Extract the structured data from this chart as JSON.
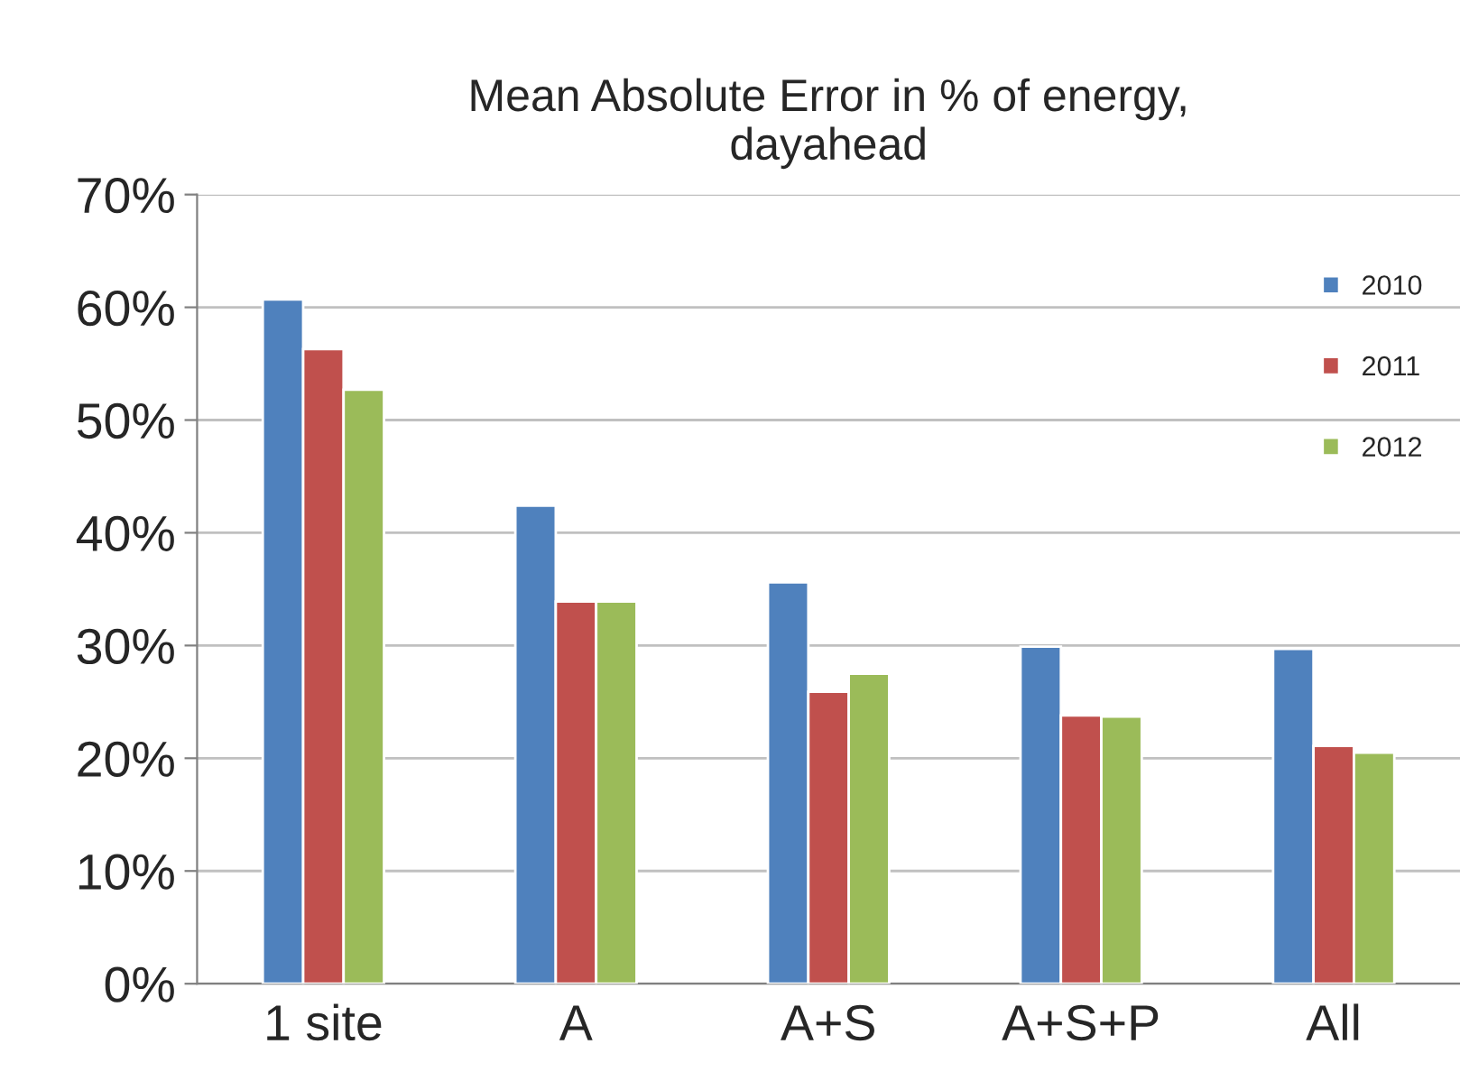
{
  "chart_data": {
    "type": "bar",
    "title": "Mean Absolute Error in % of energy,\ndayahead",
    "categories": [
      "1 site",
      "A",
      "A+S",
      "A+S+P",
      "All"
    ],
    "series": [
      {
        "name": "2010",
        "color": "#4f81bd",
        "values": [
          60.7,
          42.4,
          35.6,
          29.9,
          29.7
        ]
      },
      {
        "name": "2011",
        "color": "#c0504d",
        "values": [
          56.3,
          33.9,
          25.9,
          23.8,
          21.1
        ]
      },
      {
        "name": "2012",
        "color": "#9bbb59",
        "values": [
          52.7,
          33.9,
          27.5,
          23.7,
          20.5
        ]
      }
    ],
    "ylim": [
      0,
      70
    ],
    "yticks": [
      {
        "value": 0,
        "label": "0%"
      },
      {
        "value": 10,
        "label": "10%"
      },
      {
        "value": 20,
        "label": "20%"
      },
      {
        "value": 30,
        "label": "30%"
      },
      {
        "value": 40,
        "label": "40%"
      },
      {
        "value": 50,
        "label": "50%"
      },
      {
        "value": 60,
        "label": "60%"
      },
      {
        "value": 70,
        "label": "70%"
      }
    ],
    "grid": "y",
    "legend": "top right"
  }
}
